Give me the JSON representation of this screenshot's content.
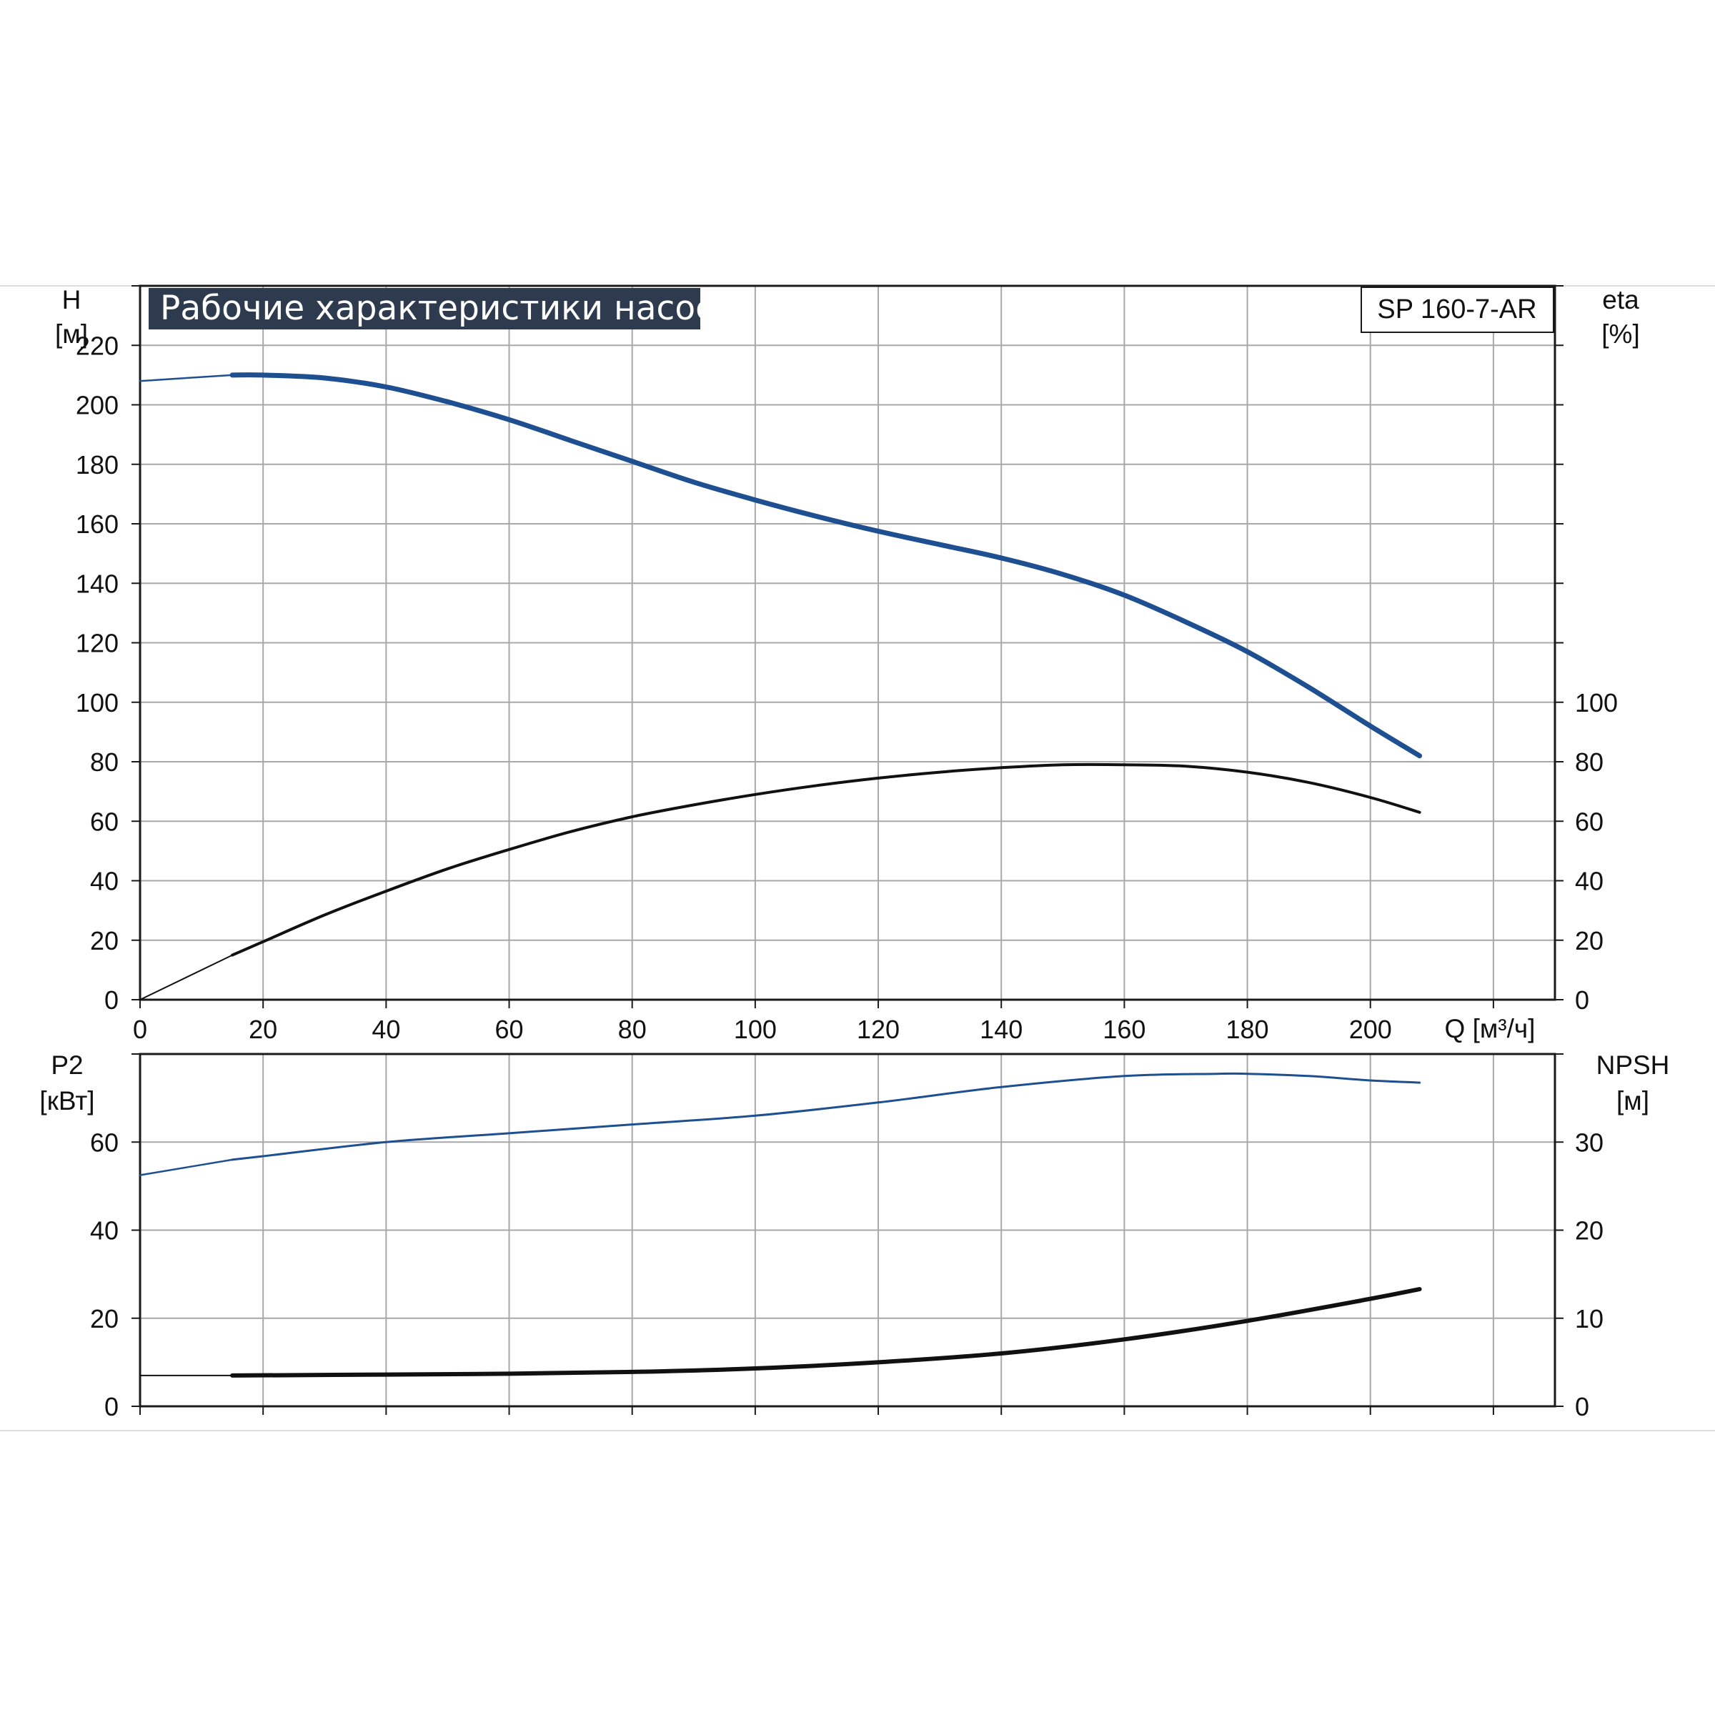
{
  "chart_data": [
    {
      "type": "line",
      "title": "Рабочие характеристики насоса",
      "model": "SP 160-7-AR",
      "xlabel": "Q [м³/ч]",
      "ylabel_left": [
        "H",
        "[м]"
      ],
      "ylabel_right": [
        "eta",
        "[%]"
      ],
      "xlim": [
        0,
        230
      ],
      "ylim_left": [
        0,
        240
      ],
      "ylim_right": [
        0,
        240
      ],
      "x_ticks": [
        0,
        20,
        40,
        60,
        80,
        100,
        120,
        140,
        160,
        180,
        200
      ],
      "y_ticks_left": [
        0,
        20,
        40,
        60,
        80,
        100,
        120,
        140,
        160,
        180,
        200,
        220
      ],
      "y_ticks_right": [
        0,
        20,
        40,
        60,
        80,
        100
      ],
      "grid": true,
      "series": [
        {
          "id": "head",
          "axis": "left",
          "color": "#1d4f91",
          "x": [
            0,
            15,
            20,
            30,
            40,
            50,
            60,
            70,
            80,
            90,
            100,
            110,
            120,
            130,
            140,
            150,
            160,
            170,
            180,
            190,
            200,
            208
          ],
          "y": [
            208,
            210,
            210,
            209,
            206,
            201,
            195,
            188,
            181,
            174,
            168,
            162.5,
            157.5,
            153,
            148.5,
            143,
            136,
            127,
            117,
            105,
            92,
            82
          ]
        },
        {
          "id": "efficiency",
          "axis": "right",
          "color": "#111111",
          "x": [
            0,
            15,
            20,
            30,
            40,
            50,
            60,
            70,
            80,
            90,
            100,
            110,
            120,
            130,
            140,
            150,
            160,
            170,
            180,
            190,
            200,
            208
          ],
          "y": [
            0,
            15,
            19.5,
            28.5,
            36.5,
            44,
            50.5,
            56.5,
            61.5,
            65.5,
            69,
            72,
            74.5,
            76.5,
            78,
            79,
            79,
            78.5,
            76.5,
            73,
            68,
            63
          ]
        }
      ]
    },
    {
      "type": "line",
      "ylabel_left": [
        "P2",
        "[кВт]"
      ],
      "ylabel_right": [
        "NPSH",
        "[м]"
      ],
      "xlim": [
        0,
        230
      ],
      "ylim_left": [
        0,
        80
      ],
      "ylim_right": [
        0,
        40
      ],
      "y_ticks_left": [
        0,
        20,
        40,
        60
      ],
      "y_ticks_right": [
        0,
        10,
        20,
        30
      ],
      "grid": true,
      "series": [
        {
          "id": "power",
          "axis": "left",
          "color": "#1d4f91",
          "x": [
            0,
            15,
            20,
            40,
            60,
            80,
            100,
            120,
            140,
            160,
            175,
            180,
            190,
            200,
            208
          ],
          "y": [
            52.5,
            56,
            56.8,
            60,
            62,
            64,
            66,
            69,
            72.5,
            75,
            75.5,
            75.5,
            75,
            74,
            73.5
          ]
        },
        {
          "id": "npsh",
          "axis": "right",
          "color": "#111111",
          "x": [
            0,
            15,
            40,
            60,
            80,
            100,
            120,
            140,
            160,
            180,
            200,
            208
          ],
          "y": [
            3.5,
            3.5,
            3.6,
            3.7,
            3.9,
            4.3,
            5,
            6,
            7.6,
            9.7,
            12.2,
            13.3
          ]
        }
      ]
    }
  ]
}
